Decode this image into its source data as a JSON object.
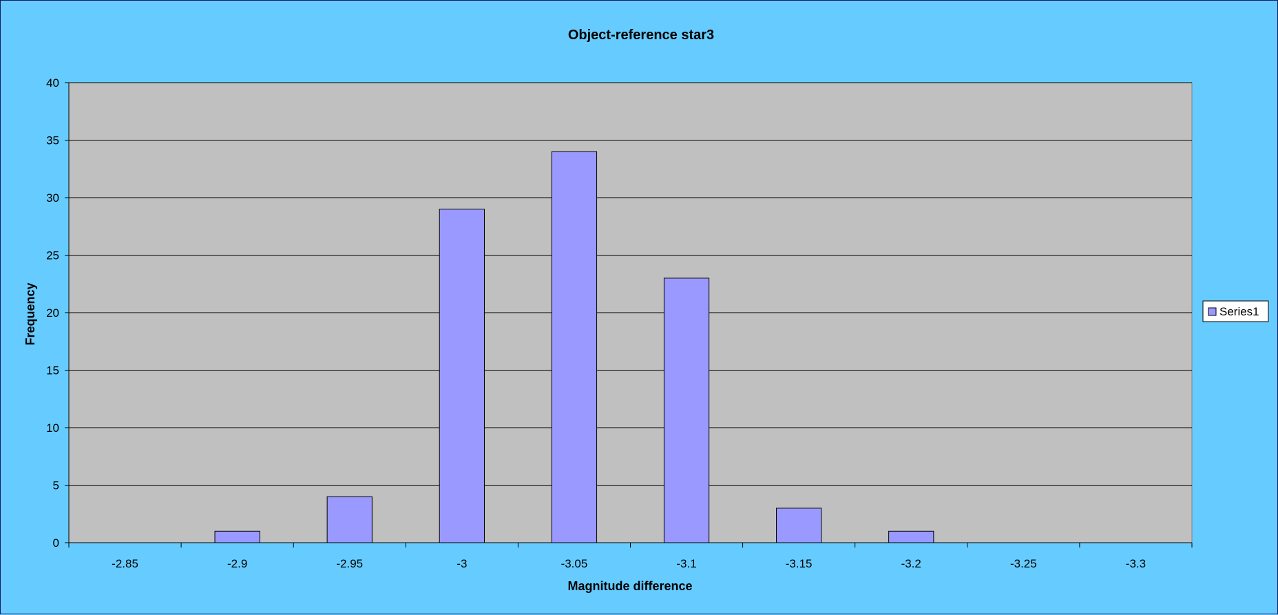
{
  "chart_data": {
    "type": "bar",
    "title": "Object-reference star3",
    "xlabel": "Magnitude difference",
    "ylabel": "Frequency",
    "categories": [
      "-2.85",
      "-2.9",
      "-2.95",
      "-3",
      "-3.05",
      "-3.1",
      "-3.15",
      "-3.2",
      "-3.25",
      "-3.3"
    ],
    "series": [
      {
        "name": "Series1",
        "values": [
          0,
          1,
          4,
          29,
          34,
          23,
          3,
          1,
          0,
          0
        ]
      }
    ],
    "ylim": [
      0,
      40
    ],
    "yticks": [
      0,
      5,
      10,
      15,
      20,
      25,
      30,
      35,
      40
    ],
    "grid": true,
    "legend_position": "right",
    "colors": {
      "background": "#66ccff",
      "plot_area": "#c0c0c0",
      "bar_fill": "#9999ff",
      "bar_stroke": "#000000",
      "gridline": "#000000"
    }
  }
}
